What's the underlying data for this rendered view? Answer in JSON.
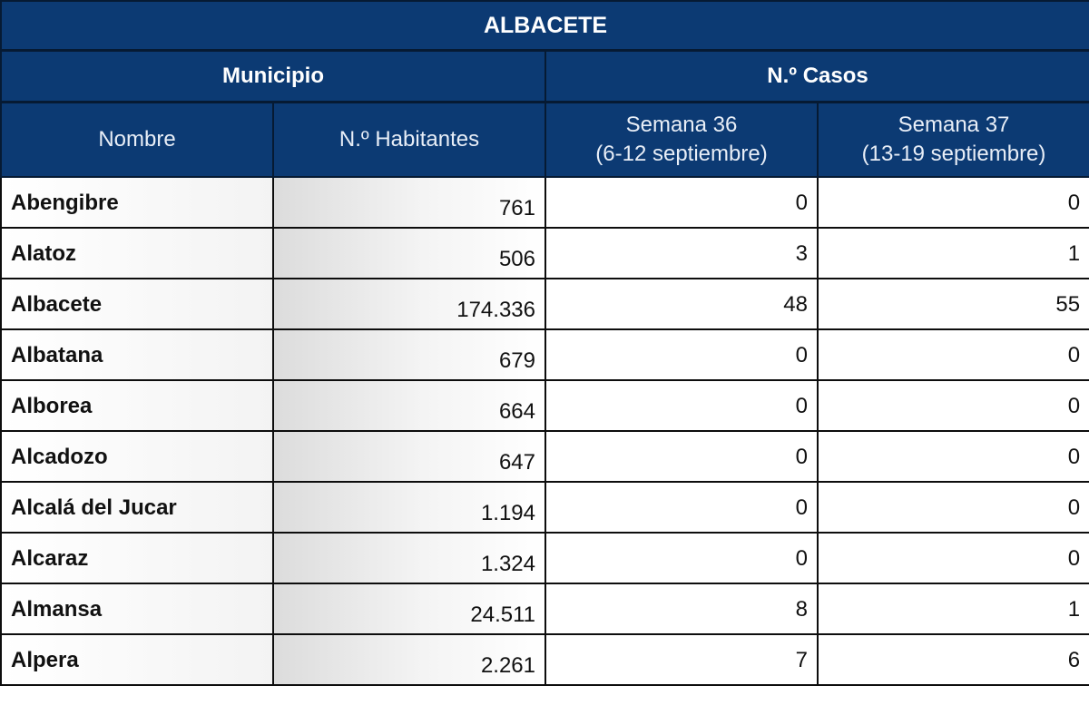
{
  "table": {
    "title": "ALBACETE",
    "group_headers": {
      "municipio": "Municipio",
      "casos": "N.º Casos"
    },
    "columns": {
      "nombre": "Nombre",
      "habitantes": "N.º Habitantes",
      "semana36_line1": "Semana 36",
      "semana36_line2": "(6-12 septiembre)",
      "semana37_line1": "Semana 37",
      "semana37_line2": "(13-19 septiembre)"
    },
    "rows": [
      {
        "nombre": "Abengibre",
        "habitantes": "761",
        "semana36": "0",
        "semana37": "0"
      },
      {
        "nombre": "Alatoz",
        "habitantes": "506",
        "semana36": "3",
        "semana37": "1"
      },
      {
        "nombre": "Albacete",
        "habitantes": "174.336",
        "semana36": "48",
        "semana37": "55"
      },
      {
        "nombre": "Albatana",
        "habitantes": "679",
        "semana36": "0",
        "semana37": "0"
      },
      {
        "nombre": "Alborea",
        "habitantes": "664",
        "semana36": "0",
        "semana37": "0"
      },
      {
        "nombre": "Alcadozo",
        "habitantes": "647",
        "semana36": "0",
        "semana37": "0"
      },
      {
        "nombre": "Alcalá  del Jucar",
        "habitantes": "1.194",
        "semana36": "0",
        "semana37": "0"
      },
      {
        "nombre": "Alcaraz",
        "habitantes": "1.324",
        "semana36": "0",
        "semana37": "0"
      },
      {
        "nombre": "Almansa",
        "habitantes": "24.511",
        "semana36": "8",
        "semana37": "1"
      },
      {
        "nombre": "Alpera",
        "habitantes": "2.261",
        "semana36": "7",
        "semana37": "6"
      }
    ]
  }
}
